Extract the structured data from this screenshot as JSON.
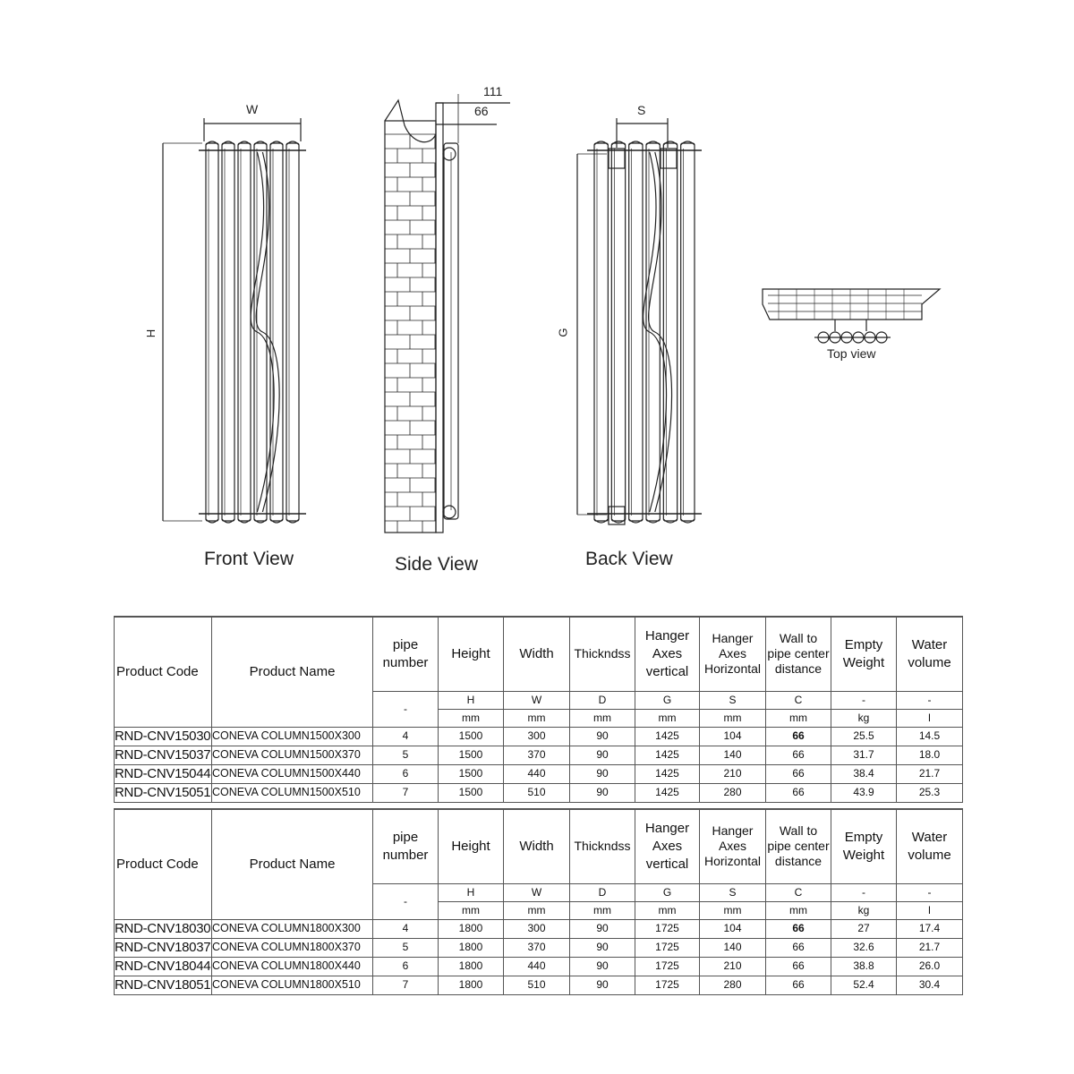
{
  "drawing": {
    "front_view_label": "Front View",
    "side_view_label": "Side View",
    "back_view_label": "Back View",
    "top_view_label": "Top view",
    "dim_w": "W",
    "dim_h": "H",
    "dim_s": "S",
    "dim_g": "G",
    "dim_111": "111",
    "dim_66": "66"
  },
  "table_headers": {
    "product_code": "Product Code",
    "product_name": "Product Name",
    "pipe_number": "pipe number",
    "height": "Height",
    "width": "Width",
    "thickness": "Thickndss",
    "hanger_vertical": "Hanger Axes vertical",
    "hanger_horizontal": "Hanger Axes Horizontal",
    "wall_to_pipe": "Wall to pipe center distance",
    "empty_weight": "Empty Weight",
    "water_volume": "Water volume",
    "symbols": [
      "-",
      "H",
      "W",
      "D",
      "G",
      "S",
      "C",
      "-",
      "-"
    ],
    "units": [
      "mm",
      "mm",
      "mm",
      "mm",
      "mm",
      "mm",
      "kg",
      "l"
    ]
  },
  "tables": [
    {
      "rows": [
        {
          "code": "RND-CNV15030",
          "name": "CONEVA COLUMN1500X300",
          "pipes": "4",
          "height": "1500",
          "width": "300",
          "thickness": "90",
          "g": "1425",
          "s": "104",
          "c": "66",
          "weight": "25.5",
          "volume": "14.5"
        },
        {
          "code": "RND-CNV15037",
          "name": "CONEVA COLUMN1500X370",
          "pipes": "5",
          "height": "1500",
          "width": "370",
          "thickness": "90",
          "g": "1425",
          "s": "140",
          "c": "66",
          "weight": "31.7",
          "volume": "18.0"
        },
        {
          "code": "RND-CNV15044",
          "name": "CONEVA COLUMN1500X440",
          "pipes": "6",
          "height": "1500",
          "width": "440",
          "thickness": "90",
          "g": "1425",
          "s": "210",
          "c": "66",
          "weight": "38.4",
          "volume": "21.7"
        },
        {
          "code": "RND-CNV15051",
          "name": "CONEVA COLUMN1500X510",
          "pipes": "7",
          "height": "1500",
          "width": "510",
          "thickness": "90",
          "g": "1425",
          "s": "280",
          "c": "66",
          "weight": "43.9",
          "volume": "25.3"
        }
      ]
    },
    {
      "rows": [
        {
          "code": "RND-CNV18030",
          "name": "CONEVA COLUMN1800X300",
          "pipes": "4",
          "height": "1800",
          "width": "300",
          "thickness": "90",
          "g": "1725",
          "s": "104",
          "c": "66",
          "weight": "27",
          "volume": "17.4"
        },
        {
          "code": "RND-CNV18037",
          "name": "CONEVA COLUMN1800X370",
          "pipes": "5",
          "height": "1800",
          "width": "370",
          "thickness": "90",
          "g": "1725",
          "s": "140",
          "c": "66",
          "weight": "32.6",
          "volume": "21.7"
        },
        {
          "code": "RND-CNV18044",
          "name": "CONEVA COLUMN1800X440",
          "pipes": "6",
          "height": "1800",
          "width": "440",
          "thickness": "90",
          "g": "1725",
          "s": "210",
          "c": "66",
          "weight": "38.8",
          "volume": "26.0"
        },
        {
          "code": "RND-CNV18051",
          "name": "CONEVA COLUMN1800X510",
          "pipes": "7",
          "height": "1800",
          "width": "510",
          "thickness": "90",
          "g": "1725",
          "s": "280",
          "c": "66",
          "weight": "52.4",
          "volume": "30.4"
        }
      ]
    }
  ]
}
